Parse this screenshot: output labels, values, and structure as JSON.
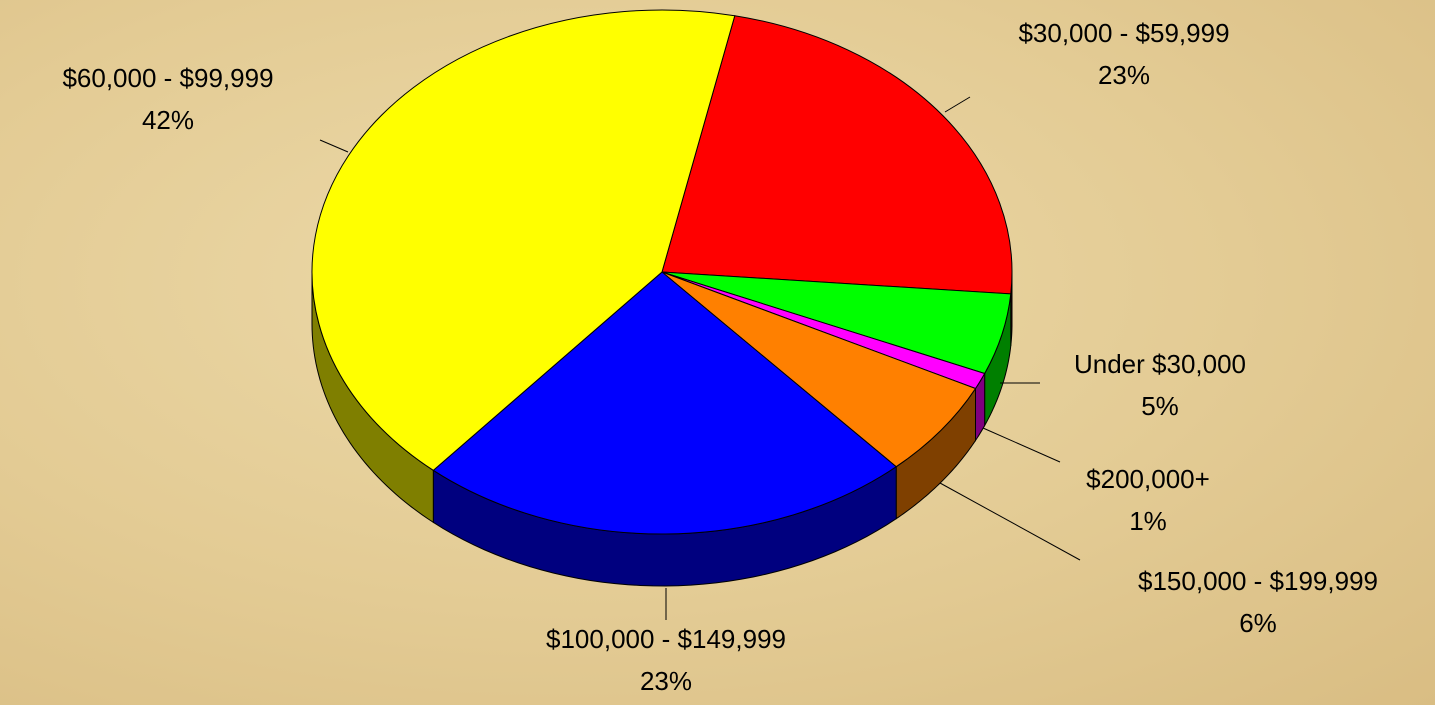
{
  "chart_data": {
    "type": "pie",
    "categories": [
      "$30,000 - $59,999",
      "Under $30,000",
      "$200,000+",
      "$150,000 - $199,999",
      "$100,000 - $149,999",
      "$60,000 - $99,999"
    ],
    "values": [
      23,
      5,
      1,
      6,
      23,
      42
    ],
    "value_labels": [
      "23%",
      "5%",
      "1%",
      "6%",
      "23%",
      "42%"
    ],
    "colors": [
      "#ff0000",
      "#00ff00",
      "#ff00ff",
      "#ff8000",
      "#0000ff",
      "#ffff00"
    ]
  }
}
